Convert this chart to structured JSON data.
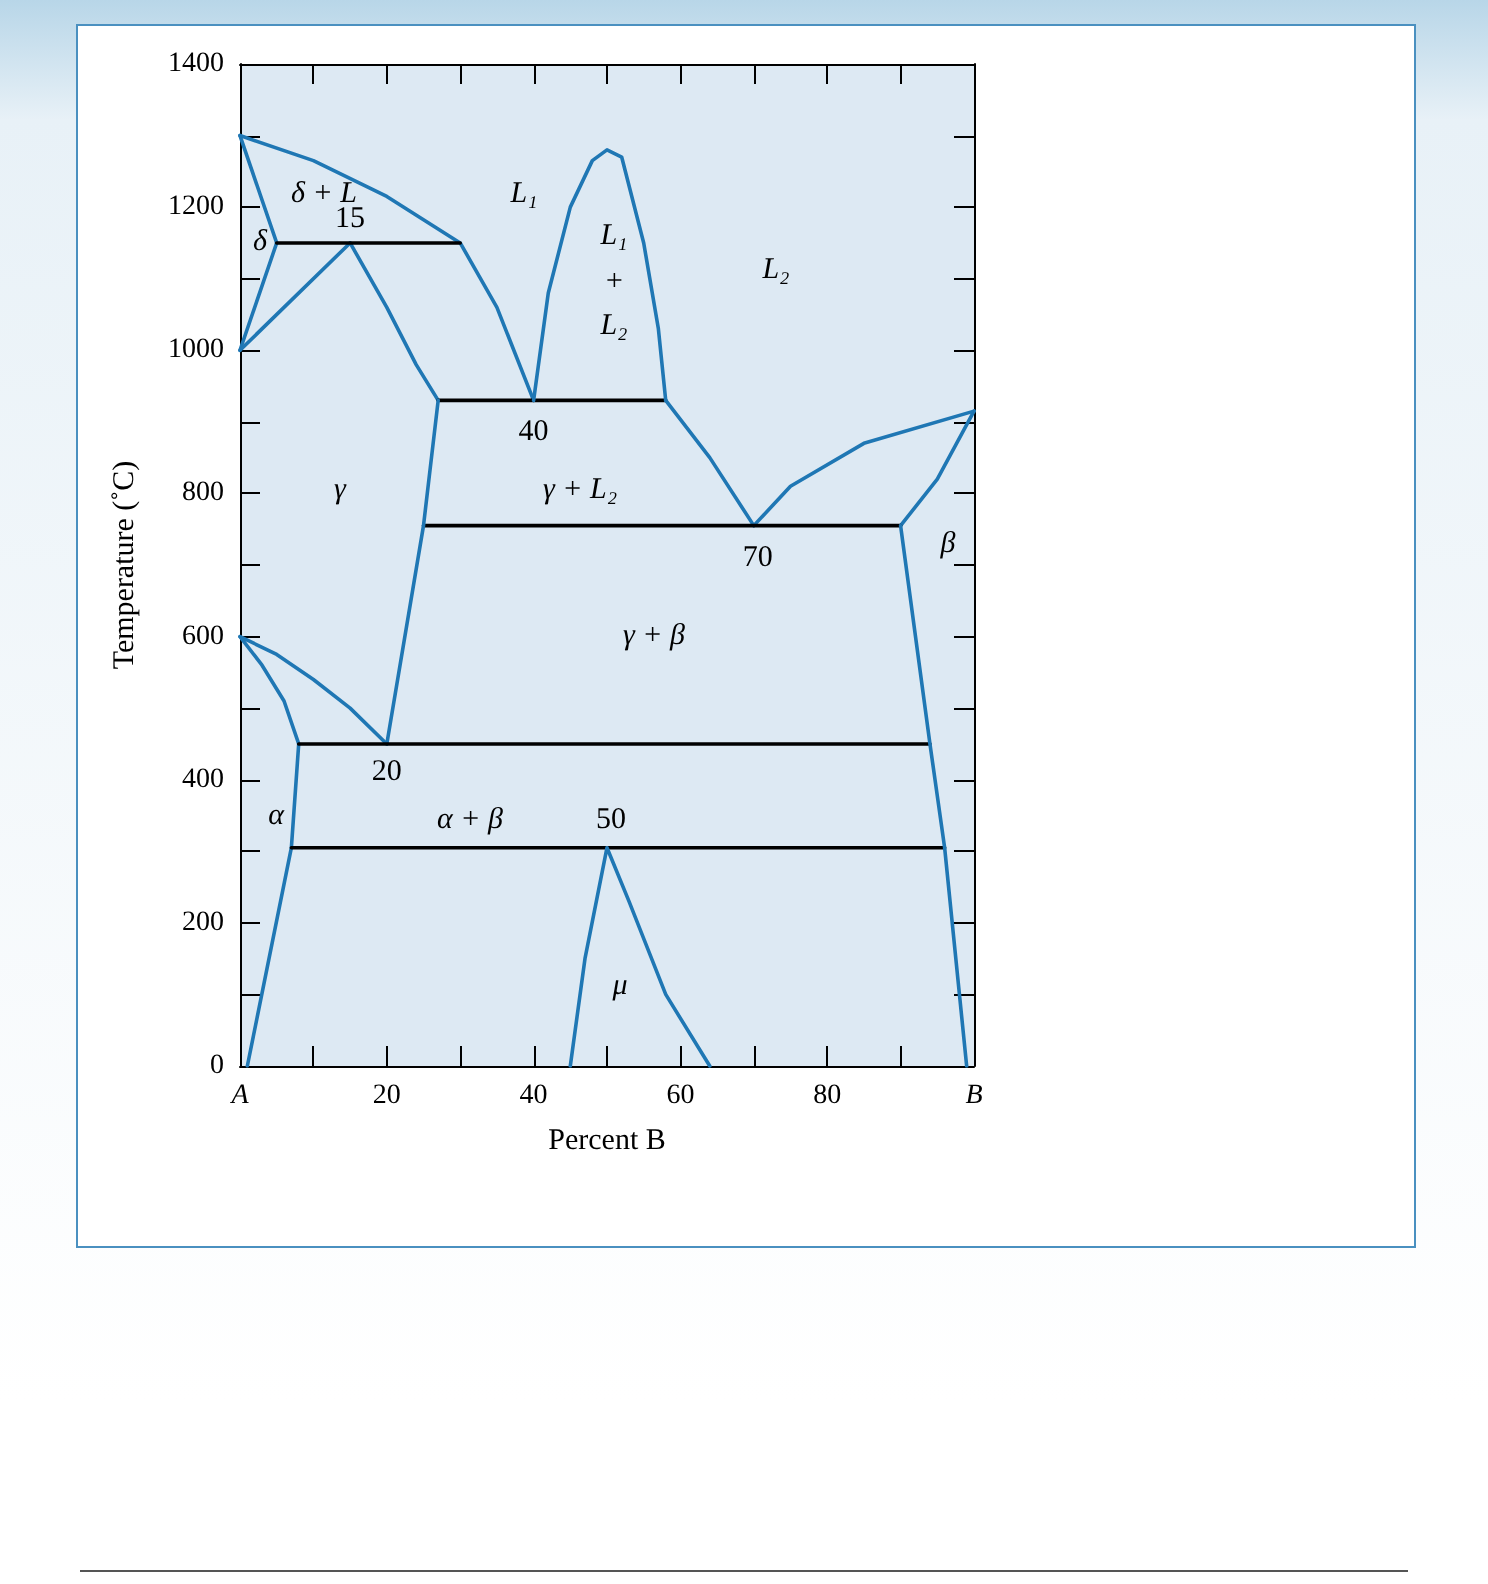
{
  "chart_data": {
    "type": "line",
    "xlabel": "Percent B",
    "ylabel": "Temperature (˚C)",
    "xlim": [
      0,
      100
    ],
    "xticks": [
      {
        "value": 0,
        "label": "A"
      },
      {
        "value": 10,
        "label": null
      },
      20,
      {
        "value": 30,
        "label": null
      },
      40,
      {
        "value": 50,
        "label": null
      },
      60,
      {
        "value": 70,
        "label": null
      },
      80,
      {
        "value": 90,
        "label": null
      },
      {
        "value": 100,
        "label": "B"
      }
    ],
    "ylim": [
      0,
      1400
    ],
    "yticks": [
      0,
      {
        "value": 100,
        "label": null
      },
      200,
      {
        "value": 300,
        "label": null
      },
      400,
      {
        "value": 500,
        "label": null
      },
      600,
      {
        "value": 700,
        "label": null
      },
      800,
      {
        "value": 900,
        "label": null
      },
      1000,
      {
        "value": 1100,
        "label": null
      },
      1200,
      {
        "value": 1300,
        "label": null
      },
      1400
    ],
    "grid": false,
    "marker": "none",
    "line_style": "solid",
    "series": [
      {
        "color": "#1f77b4",
        "x": [
          0,
          10,
          20,
          30,
          35,
          40
        ],
        "values": [
          1300,
          1265,
          1215,
          1150,
          1060,
          930
        ]
      },
      {
        "color": "#1f77b4",
        "x": [
          0,
          5
        ],
        "values": [
          1300,
          1150
        ]
      },
      {
        "color": "#1f77b4",
        "x": [
          0,
          5
        ],
        "values": [
          1000,
          1150
        ]
      },
      {
        "color": "#1f77b4",
        "x": [
          0,
          15
        ],
        "values": [
          1000,
          1150
        ]
      },
      {
        "color": "#1f77b4",
        "x": [
          15,
          20,
          24,
          27
        ],
        "values": [
          1150,
          1060,
          980,
          930
        ]
      },
      {
        "color": "#000000",
        "x": [
          5,
          30
        ],
        "values": [
          1150,
          1150
        ]
      },
      {
        "color": "#000000",
        "x": [
          27,
          58
        ],
        "values": [
          930,
          930
        ]
      },
      {
        "color": "#1f77b4",
        "x": [
          40,
          42,
          45,
          48,
          50,
          52,
          55,
          57,
          58
        ],
        "values": [
          930,
          1080,
          1200,
          1265,
          1280,
          1270,
          1150,
          1030,
          930
        ]
      },
      {
        "color": "#1f77b4",
        "x": [
          58,
          64,
          70
        ],
        "values": [
          930,
          850,
          755
        ]
      },
      {
        "color": "#1f77b4",
        "x": [
          70,
          75,
          85,
          100
        ],
        "values": [
          755,
          810,
          870,
          915
        ]
      },
      {
        "color": "#1f77b4",
        "x": [
          90,
          95,
          100
        ],
        "values": [
          755,
          820,
          915
        ]
      },
      {
        "color": "#000000",
        "x": [
          25,
          90
        ],
        "values": [
          755,
          755
        ]
      },
      {
        "color": "#1f77b4",
        "x": [
          27,
          25,
          20
        ],
        "values": [
          930,
          755,
          450
        ]
      },
      {
        "color": "#1f77b4",
        "x": [
          0,
          5,
          10,
          15,
          20
        ],
        "values": [
          600,
          575,
          540,
          500,
          450
        ]
      },
      {
        "color": "#1f77b4",
        "x": [
          0,
          3,
          6,
          8,
          7,
          1
        ],
        "values": [
          600,
          560,
          510,
          450,
          305,
          0
        ]
      },
      {
        "color": "#000000",
        "x": [
          8,
          94
        ],
        "values": [
          450,
          450
        ]
      },
      {
        "color": "#000000",
        "x": [
          7,
          96
        ],
        "values": [
          305,
          305
        ]
      },
      {
        "color": "#1f77b4",
        "x": [
          90,
          94,
          96,
          99
        ],
        "values": [
          755,
          450,
          305,
          0
        ]
      },
      {
        "color": "#1f77b4",
        "x": [
          45,
          47,
          50,
          53,
          58,
          64
        ],
        "values": [
          0,
          150,
          305,
          230,
          100,
          0
        ]
      }
    ],
    "annotations": [
      "δ + L",
      "δ",
      {
        "text": "15",
        "x": 15,
        "y": 1150
      },
      "L₁",
      "L₁",
      "+",
      "L₂",
      "L₂",
      {
        "text": "40",
        "x": 40,
        "y": 930
      },
      "γ",
      "γ + L₂",
      {
        "text": "70",
        "x": 70,
        "y": 755
      },
      "β",
      "γ + β",
      "α",
      {
        "text": "20",
        "x": 20,
        "y": 450
      },
      "α + β",
      {
        "text": "50",
        "x": 50,
        "y": 305
      },
      "μ"
    ]
  }
}
